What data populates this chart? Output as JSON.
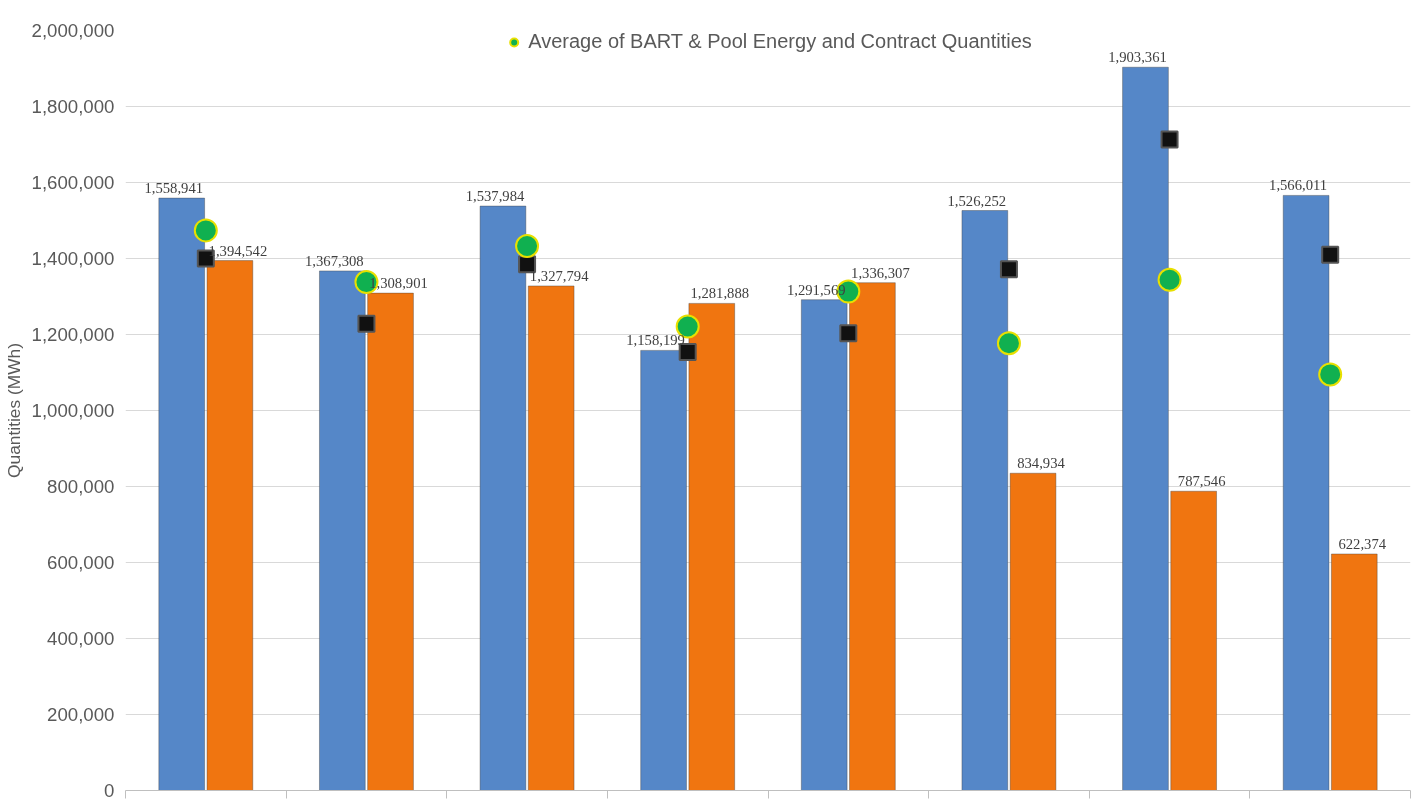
{
  "chart_data": {
    "type": "bar",
    "ylabel": "Quantities (MWh)",
    "categories": [
      null,
      null,
      null,
      null,
      null,
      null,
      null,
      null
    ],
    "series": [
      {
        "color": "#5587c8",
        "values": [
          1558941,
          1367308,
          1537984,
          1158199,
          1291569,
          1526252,
          1903361,
          1566011
        ],
        "value_labels": [
          "1,558,941",
          "1,367,308",
          "1,537,984",
          "1,158,199",
          "1,291,569",
          "1,526,252",
          "1,903,361",
          "1,566,011"
        ]
      },
      {
        "color": "#f07510",
        "values": [
          1394542,
          1308901,
          1327794,
          1281888,
          1336307,
          834934,
          787546,
          622374
        ],
        "value_labels": [
          "1,394,542",
          "1,308,901",
          "1,327,794",
          "1,281,888",
          "1,336,307",
          "834,934",
          "787,546",
          "622,374"
        ]
      },
      {
        "type": "scatter",
        "marker": "square",
        "color": "#111111",
        "values": [
          1400000,
          1228000,
          1385000,
          1154000,
          1203000,
          1372000,
          1713000,
          1410000
        ]
      },
      {
        "type": "scatter",
        "marker": "circle",
        "name": "Average of BART & Pool Energy and Contract Quantities",
        "color": "#10b050",
        "values": [
          1474000,
          1338000,
          1433000,
          1221000,
          1313000,
          1177000,
          1344000,
          1095000
        ]
      }
    ],
    "ylim": [
      0,
      2000000
    ],
    "yticks": [
      {
        "value": 0,
        "label": "0"
      },
      {
        "value": 200000,
        "label": "200,000"
      },
      {
        "value": 400000,
        "label": "400,000"
      },
      {
        "value": 600000,
        "label": "600,000"
      },
      {
        "value": 800000,
        "label": "800,000"
      },
      {
        "value": 1000000,
        "label": "1,000,000"
      },
      {
        "value": 1200000,
        "label": "1,200,000"
      },
      {
        "value": 1400000,
        "label": "1,400,000"
      },
      {
        "value": 1600000,
        "label": "1,600,000"
      },
      {
        "value": 1800000,
        "label": "1,800,000"
      },
      {
        "value": 2000000,
        "label": "2,000,000"
      }
    ],
    "grid": "y",
    "legend": "top"
  }
}
